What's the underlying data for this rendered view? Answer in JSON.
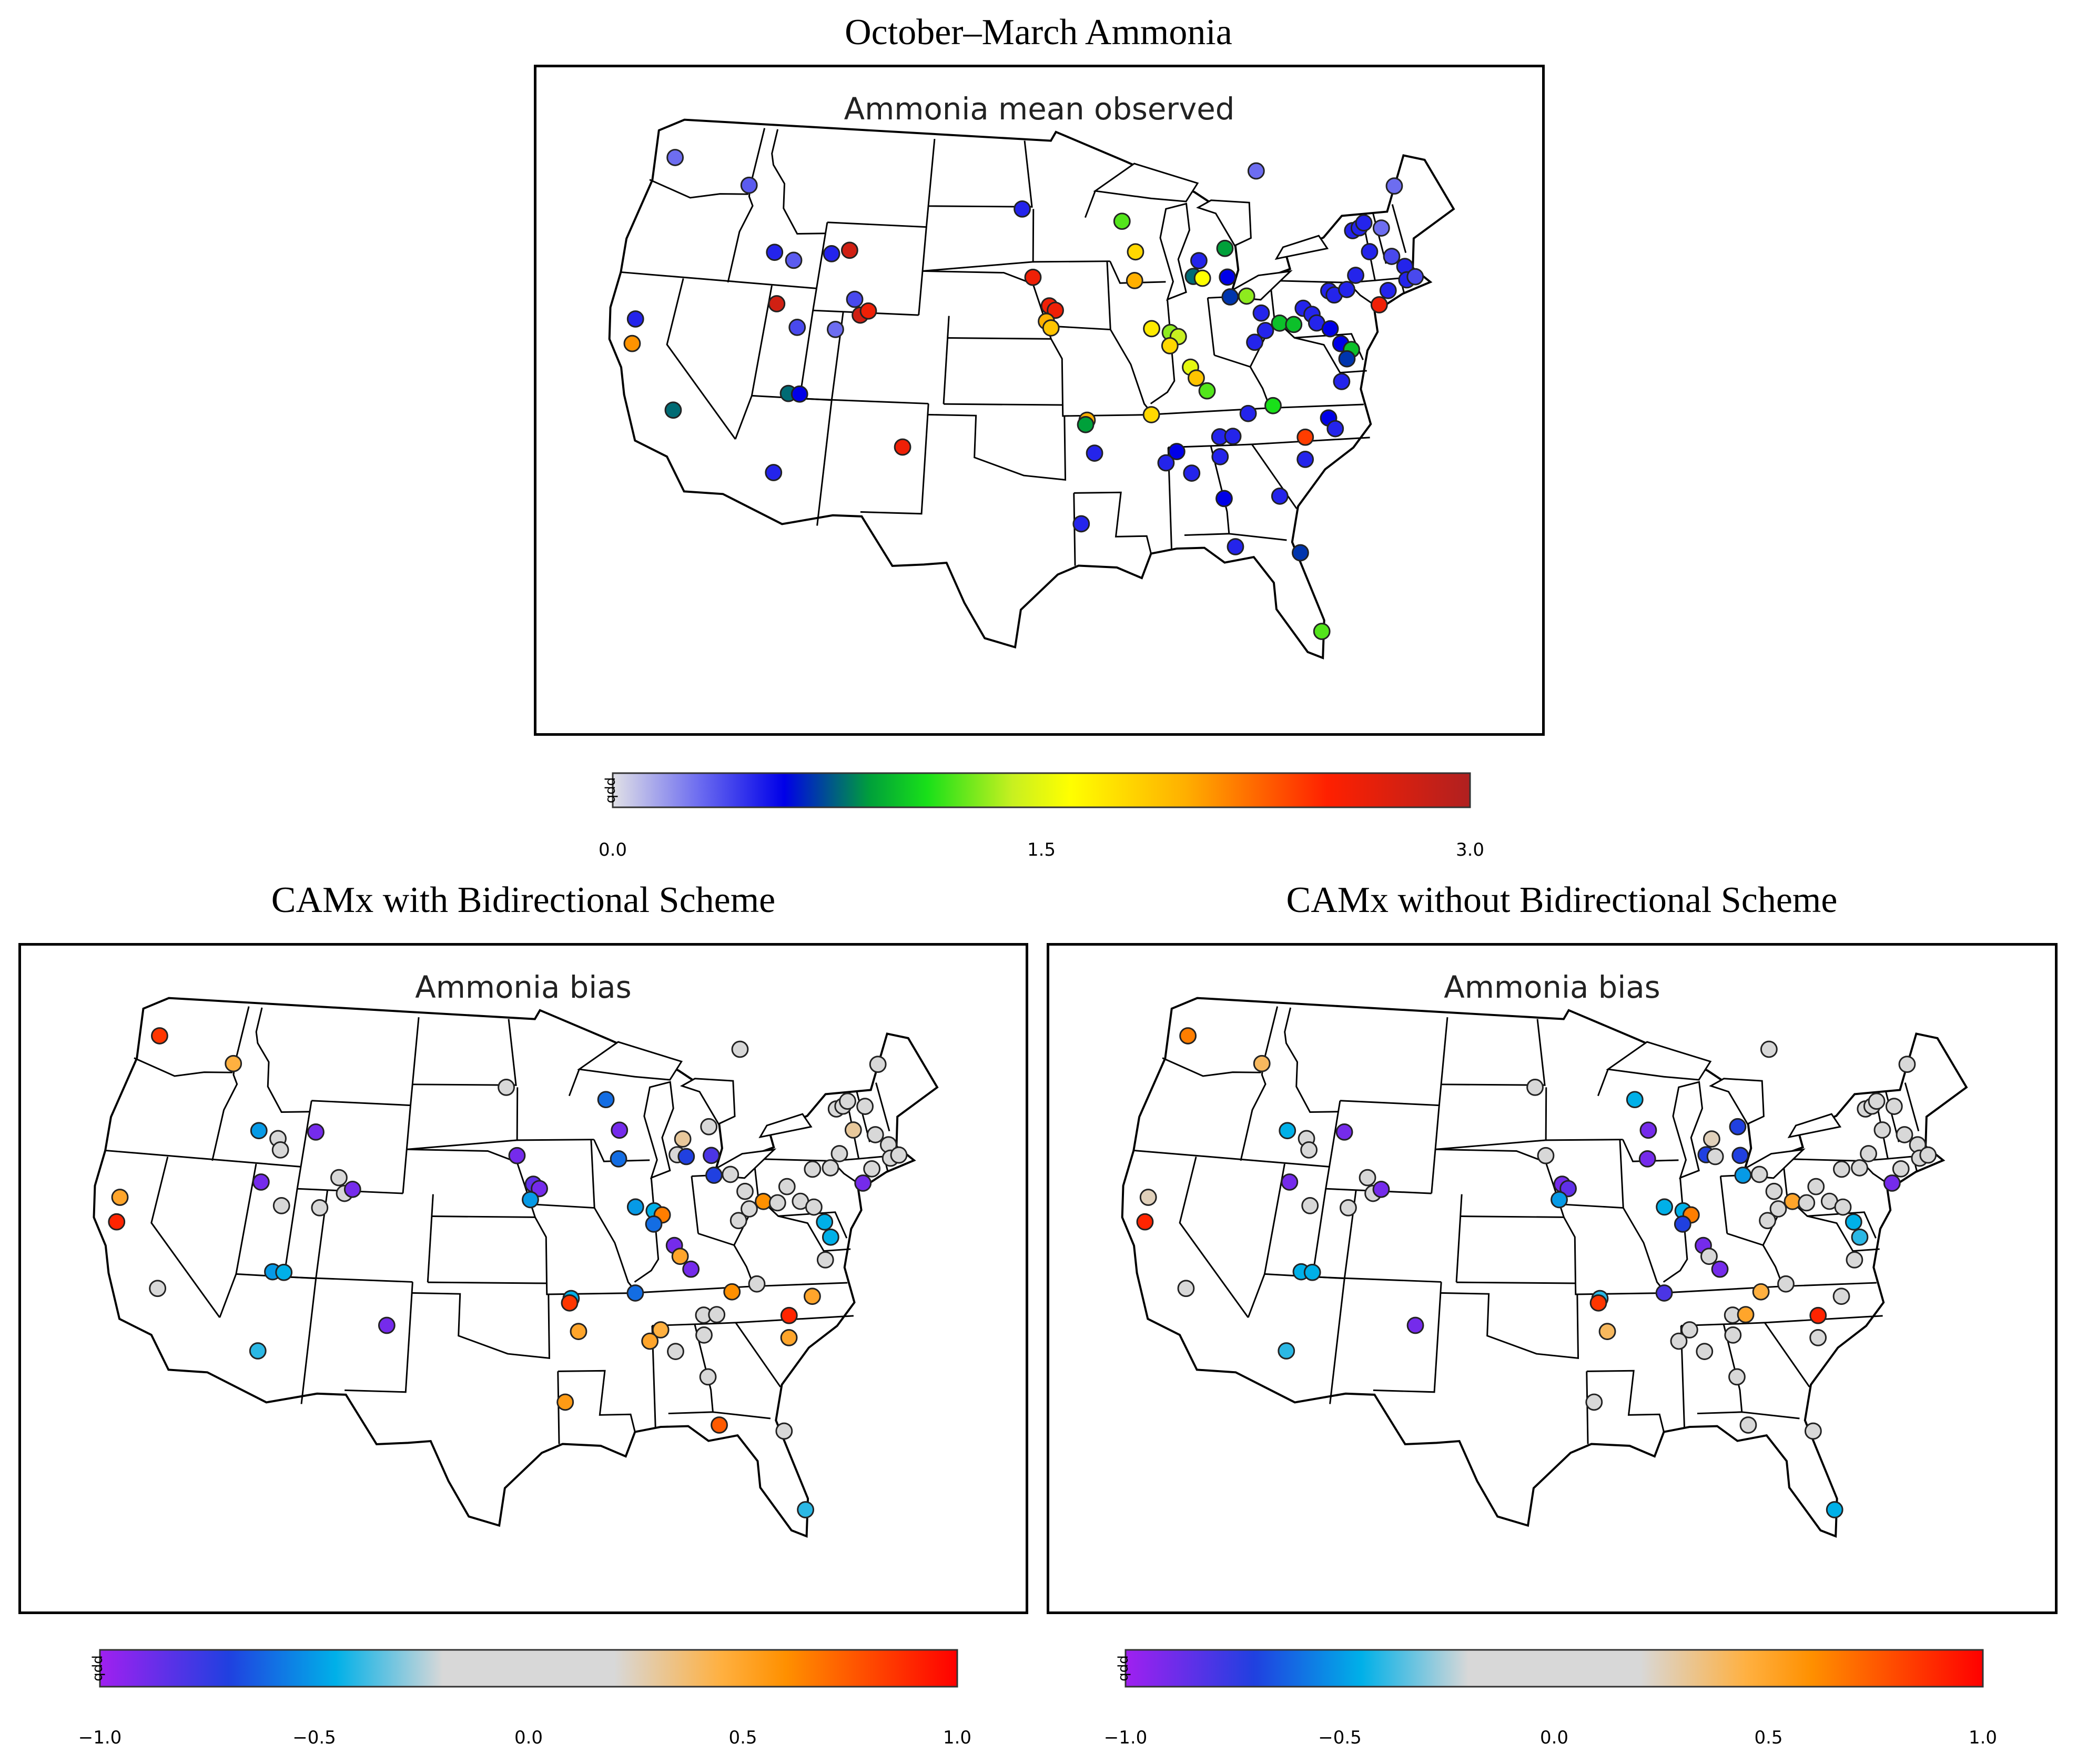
{
  "figure": {
    "title_top": "October–March Ammonia",
    "title_left": "CAMx with Bidirectional Scheme",
    "title_right": "CAMx without Bidirectional Scheme"
  },
  "maps": {
    "observed": {
      "inner_title": "Ammonia mean observed",
      "legend": {
        "unit": "ppb",
        "ticks": [
          "0.0",
          "1.5",
          "3.0"
        ],
        "range": [
          0,
          3
        ],
        "stops": [
          {
            "v": 0.0,
            "color": "#e0e0e6"
          },
          {
            "v": 0.3,
            "color": "#6d6df0"
          },
          {
            "v": 0.6,
            "color": "#0000e8"
          },
          {
            "v": 0.9,
            "color": "#00a03a"
          },
          {
            "v": 1.1,
            "color": "#19e019"
          },
          {
            "v": 1.4,
            "color": "#c8f020"
          },
          {
            "v": 1.6,
            "color": "#ffff00"
          },
          {
            "v": 2.0,
            "color": "#ffb000"
          },
          {
            "v": 2.5,
            "color": "#ff2000"
          },
          {
            "v": 3.0,
            "color": "#b02020"
          }
        ]
      }
    },
    "bias_with": {
      "inner_title": "Ammonia bias",
      "legend": {
        "unit": "ppb",
        "ticks": [
          "−1.0",
          "−0.5",
          "0.0",
          "0.5",
          "1.0"
        ],
        "range": [
          -1,
          1
        ],
        "stops": [
          {
            "v": -1.0,
            "color": "#a020f0"
          },
          {
            "v": -0.7,
            "color": "#2040e0"
          },
          {
            "v": -0.45,
            "color": "#00b0e8"
          },
          {
            "v": -0.2,
            "color": "#d8d8d8"
          },
          {
            "v": 0.2,
            "color": "#d8d8d8"
          },
          {
            "v": 0.45,
            "color": "#ffb040"
          },
          {
            "v": 0.6,
            "color": "#ff9000"
          },
          {
            "v": 1.0,
            "color": "#ff0000"
          }
        ]
      }
    },
    "bias_without": {
      "inner_title": "Ammonia bias",
      "legend": {
        "unit": "ppb",
        "ticks": [
          "−1.0",
          "−0.5",
          "0.0",
          "0.5",
          "1.0"
        ],
        "range": [
          -1,
          1
        ]
      }
    }
  },
  "sites": {
    "observed": [
      [
        -122.9,
        47.3,
        0.3
      ],
      [
        -117.1,
        46.4,
        0.35
      ],
      [
        -114.3,
        43.5,
        0.5
      ],
      [
        -112.9,
        43.2,
        0.35
      ],
      [
        -110.4,
        43.6,
        0.5
      ],
      [
        -109.2,
        43.8,
        2.8
      ],
      [
        -113.5,
        41.2,
        2.8
      ],
      [
        -122.4,
        40.0,
        0.5
      ],
      [
        -122.2,
        38.9,
        2.1
      ],
      [
        -118.7,
        36.1,
        0.8
      ],
      [
        -111.9,
        40.2,
        0.4
      ],
      [
        -108.4,
        41.6,
        0.4
      ],
      [
        -107.9,
        40.9,
        2.8
      ],
      [
        -107.4,
        41.1,
        2.6
      ],
      [
        -109.4,
        40.2,
        0.3
      ],
      [
        -111.8,
        37.2,
        0.8
      ],
      [
        -111.1,
        37.2,
        0.6
      ],
      [
        -112.0,
        33.6,
        0.5
      ],
      [
        -104.4,
        35.0,
        2.6
      ],
      [
        -97.3,
        45.9,
        0.5
      ],
      [
        -96.5,
        42.8,
        2.6
      ],
      [
        -95.4,
        41.5,
        2.6
      ],
      [
        -95.0,
        41.3,
        2.6
      ],
      [
        -95.6,
        40.8,
        2.0
      ],
      [
        -95.3,
        40.5,
        1.9
      ],
      [
        -93.1,
        36.3,
        2.0
      ],
      [
        -93.2,
        36.1,
        0.9
      ],
      [
        -92.7,
        34.8,
        0.5
      ],
      [
        -93.6,
        31.6,
        0.5
      ],
      [
        -90.2,
        45.3,
        1.2
      ],
      [
        -89.4,
        43.9,
        1.8
      ],
      [
        -89.6,
        42.6,
        2.0
      ],
      [
        -88.7,
        40.4,
        1.7
      ],
      [
        -87.5,
        40.2,
        1.3
      ],
      [
        -87.0,
        40.0,
        1.4
      ],
      [
        -87.6,
        39.6,
        1.8
      ],
      [
        -86.4,
        38.6,
        1.5
      ],
      [
        -86.1,
        38.1,
        1.9
      ],
      [
        -85.5,
        37.5,
        1.2
      ],
      [
        -89.1,
        36.5,
        1.8
      ],
      [
        -87.7,
        34.8,
        0.6
      ],
      [
        -88.4,
        34.3,
        0.5
      ],
      [
        -86.9,
        33.8,
        0.5
      ],
      [
        -85.1,
        34.5,
        0.5
      ],
      [
        -85.1,
        32.6,
        0.6
      ],
      [
        -84.7,
        30.4,
        0.5
      ],
      [
        -85.0,
        35.4,
        0.5
      ],
      [
        -84.2,
        35.4,
        0.5
      ],
      [
        -83.1,
        36.4,
        0.5
      ],
      [
        -81.5,
        36.7,
        1.1
      ],
      [
        -79.8,
        35.2,
        2.4
      ],
      [
        -78.2,
        36.0,
        0.6
      ],
      [
        -77.9,
        35.5,
        0.5
      ],
      [
        -80.0,
        34.2,
        0.5
      ],
      [
        -81.8,
        32.6,
        0.5
      ],
      [
        -81.0,
        30.0,
        0.7
      ],
      [
        -80.3,
        26.4,
        1.2
      ],
      [
        -85.6,
        42.7,
        0.8
      ],
      [
        -85.1,
        43.4,
        0.5
      ],
      [
        -85.0,
        42.6,
        1.6
      ],
      [
        -83.3,
        42.6,
        0.6
      ],
      [
        -83.3,
        41.7,
        0.7
      ],
      [
        -82.2,
        41.7,
        1.3
      ],
      [
        -81.4,
        40.9,
        0.5
      ],
      [
        -81.3,
        40.1,
        0.5
      ],
      [
        -82.1,
        39.6,
        0.5
      ],
      [
        -80.3,
        40.4,
        1.0
      ],
      [
        -79.4,
        40.3,
        1.0
      ],
      [
        -78.6,
        41.0,
        0.5
      ],
      [
        -78.1,
        40.7,
        0.5
      ],
      [
        -77.9,
        40.3,
        0.5
      ],
      [
        -77.1,
        40.0,
        0.6
      ],
      [
        -76.6,
        39.3,
        0.6
      ],
      [
        -76.0,
        39.0,
        1.0
      ],
      [
        -76.4,
        38.6,
        0.7
      ],
      [
        -77.0,
        37.6,
        0.5
      ],
      [
        -76.7,
        41.7,
        0.5
      ],
      [
        -76.4,
        41.5,
        0.5
      ],
      [
        -75.5,
        41.7,
        0.5
      ],
      [
        -74.7,
        42.3,
        0.5
      ],
      [
        -74.2,
        44.3,
        0.5
      ],
      [
        -73.7,
        44.4,
        0.5
      ],
      [
        -73.3,
        44.6,
        0.5
      ],
      [
        -73.4,
        43.3,
        0.5
      ],
      [
        -72.2,
        44.3,
        0.3
      ],
      [
        -72.0,
        43.0,
        0.4
      ],
      [
        -71.3,
        42.5,
        0.5
      ],
      [
        -72.8,
        41.5,
        0.5
      ],
      [
        -73.6,
        40.9,
        2.6
      ],
      [
        -71.4,
        41.9,
        0.5
      ],
      [
        -70.8,
        42.0,
        0.4
      ],
      [
        -70.5,
        46.1,
        0.3
      ],
      [
        -80.1,
        47.3,
        0.3
      ],
      [
        -83.2,
        43.9,
        0.9
      ]
    ],
    "bias_with": [
      [
        -122.9,
        47.3,
        0.85
      ],
      [
        -117.1,
        46.4,
        0.45
      ],
      [
        -114.3,
        43.5,
        -0.5
      ],
      [
        -112.9,
        43.2,
        0.0
      ],
      [
        -110.4,
        43.6,
        -0.9
      ],
      [
        -112.6,
        42.7,
        0.0
      ],
      [
        -113.5,
        41.2,
        -0.9
      ],
      [
        -122.4,
        40.0,
        0.5
      ],
      [
        -122.2,
        38.9,
        0.9
      ],
      [
        -118.7,
        36.1,
        0.1
      ],
      [
        -111.9,
        40.2,
        0.05
      ],
      [
        -108.4,
        41.6,
        0.05
      ],
      [
        -107.9,
        40.9,
        0.05
      ],
      [
        -107.4,
        41.1,
        -0.9
      ],
      [
        -109.4,
        40.2,
        0.05
      ],
      [
        -111.8,
        37.2,
        -0.5
      ],
      [
        -111.1,
        37.2,
        -0.45
      ],
      [
        -112.0,
        33.6,
        -0.4
      ],
      [
        -104.4,
        35.0,
        -0.9
      ],
      [
        -97.3,
        45.9,
        0.05
      ],
      [
        -96.5,
        42.8,
        -0.9
      ],
      [
        -95.4,
        41.5,
        -0.85
      ],
      [
        -95.0,
        41.3,
        -0.9
      ],
      [
        -95.6,
        40.8,
        -0.5
      ],
      [
        -93.1,
        36.3,
        -0.45
      ],
      [
        -93.2,
        36.1,
        0.85
      ],
      [
        -92.7,
        34.8,
        0.5
      ],
      [
        -93.6,
        31.6,
        0.55
      ],
      [
        -90.2,
        45.3,
        -0.6
      ],
      [
        -89.4,
        43.9,
        -0.9
      ],
      [
        -89.6,
        42.6,
        -0.6
      ],
      [
        -88.7,
        40.4,
        -0.5
      ],
      [
        -87.5,
        40.2,
        -0.45
      ],
      [
        -87.0,
        40.0,
        0.65
      ],
      [
        -87.6,
        39.6,
        -0.6
      ],
      [
        -86.4,
        38.6,
        -0.9
      ],
      [
        -86.1,
        38.1,
        0.5
      ],
      [
        -85.5,
        37.5,
        -0.9
      ],
      [
        -89.1,
        36.5,
        -0.6
      ],
      [
        -87.7,
        34.8,
        0.45
      ],
      [
        -88.4,
        34.3,
        0.5
      ],
      [
        -86.9,
        33.8,
        0.05
      ],
      [
        -85.1,
        34.5,
        0.1
      ],
      [
        -85.1,
        32.6,
        0.05
      ],
      [
        -84.7,
        30.4,
        0.75
      ],
      [
        -85.0,
        35.4,
        0.05
      ],
      [
        -84.2,
        35.4,
        0.05
      ],
      [
        -83.1,
        36.4,
        0.6
      ],
      [
        -81.5,
        36.7,
        0.05
      ],
      [
        -79.8,
        35.2,
        0.9
      ],
      [
        -78.2,
        36.0,
        0.5
      ],
      [
        -80.0,
        34.2,
        0.5
      ],
      [
        -81.0,
        30.0,
        0.05
      ],
      [
        -80.3,
        26.4,
        -0.4
      ],
      [
        -85.6,
        42.7,
        0.05
      ],
      [
        -85.1,
        43.4,
        0.3
      ],
      [
        -85.0,
        42.6,
        -0.7
      ],
      [
        -83.3,
        42.6,
        -0.8
      ],
      [
        -83.3,
        41.7,
        -0.7
      ],
      [
        -82.2,
        41.7,
        0.05
      ],
      [
        -81.4,
        40.9,
        0.05
      ],
      [
        -81.3,
        40.1,
        0.05
      ],
      [
        -82.1,
        39.6,
        0.05
      ],
      [
        -80.3,
        40.4,
        0.6
      ],
      [
        -79.4,
        40.3,
        0.05
      ],
      [
        -78.6,
        41.0,
        0.05
      ],
      [
        -77.9,
        40.3,
        0.05
      ],
      [
        -77.1,
        40.0,
        0.05
      ],
      [
        -76.6,
        39.3,
        -0.45
      ],
      [
        -76.4,
        38.6,
        -0.45
      ],
      [
        -77.0,
        37.6,
        0.05
      ],
      [
        -76.7,
        41.7,
        0.05
      ],
      [
        -75.5,
        41.7,
        0.05
      ],
      [
        -74.7,
        42.3,
        0.05
      ],
      [
        -74.2,
        44.3,
        0.05
      ],
      [
        -73.7,
        44.4,
        0.05
      ],
      [
        -73.3,
        44.6,
        0.05
      ],
      [
        -73.4,
        43.3,
        0.3
      ],
      [
        -72.2,
        44.3,
        0.05
      ],
      [
        -72.0,
        43.0,
        0.05
      ],
      [
        -71.3,
        42.5,
        0.1
      ],
      [
        -72.8,
        41.5,
        0.05
      ],
      [
        -73.6,
        40.9,
        -0.9
      ],
      [
        -71.4,
        41.9,
        0.05
      ],
      [
        -70.8,
        42.0,
        0.1
      ],
      [
        -70.5,
        46.1,
        0.05
      ],
      [
        -80.1,
        47.3,
        0.05
      ],
      [
        -83.2,
        43.9,
        0.05
      ]
    ],
    "bias_without": [
      [
        -122.9,
        47.3,
        0.65
      ],
      [
        -117.1,
        46.4,
        0.4
      ],
      [
        -114.3,
        43.5,
        -0.45
      ],
      [
        -112.9,
        43.2,
        0.05
      ],
      [
        -110.4,
        43.6,
        -0.9
      ],
      [
        -112.6,
        42.7,
        0.05
      ],
      [
        -113.5,
        41.2,
        -0.9
      ],
      [
        -122.4,
        40.0,
        0.25
      ],
      [
        -122.2,
        38.9,
        0.9
      ],
      [
        -118.7,
        36.1,
        0.15
      ],
      [
        -111.9,
        40.2,
        0.05
      ],
      [
        -108.4,
        41.6,
        0.05
      ],
      [
        -107.9,
        40.9,
        0.05
      ],
      [
        -107.4,
        41.1,
        -0.9
      ],
      [
        -109.4,
        40.2,
        0.05
      ],
      [
        -111.8,
        37.2,
        -0.45
      ],
      [
        -111.1,
        37.2,
        -0.45
      ],
      [
        -112.0,
        33.6,
        -0.4
      ],
      [
        -104.4,
        35.0,
        -0.9
      ],
      [
        -97.3,
        45.9,
        0.05
      ],
      [
        -96.5,
        42.8,
        0.05
      ],
      [
        -95.4,
        41.5,
        -0.9
      ],
      [
        -95.0,
        41.3,
        -0.85
      ],
      [
        -95.6,
        40.8,
        -0.5
      ],
      [
        -93.1,
        36.3,
        -0.4
      ],
      [
        -93.2,
        36.1,
        0.85
      ],
      [
        -92.7,
        34.8,
        0.4
      ],
      [
        -93.6,
        31.6,
        0.15
      ],
      [
        -90.2,
        45.3,
        -0.45
      ],
      [
        -89.4,
        43.9,
        -0.9
      ],
      [
        -89.6,
        42.6,
        -0.9
      ],
      [
        -88.7,
        40.4,
        -0.45
      ],
      [
        -87.5,
        40.2,
        -0.45
      ],
      [
        -87.0,
        40.0,
        0.65
      ],
      [
        -87.6,
        39.6,
        -0.7
      ],
      [
        -86.4,
        38.6,
        -0.9
      ],
      [
        -86.1,
        38.1,
        0.05
      ],
      [
        -85.5,
        37.5,
        -0.9
      ],
      [
        -89.1,
        36.5,
        -0.8
      ],
      [
        -87.7,
        34.8,
        0.1
      ],
      [
        -88.4,
        34.3,
        0.05
      ],
      [
        -86.9,
        33.8,
        0.05
      ],
      [
        -85.1,
        34.5,
        0.05
      ],
      [
        -85.1,
        32.6,
        0.05
      ],
      [
        -84.7,
        30.4,
        0.2
      ],
      [
        -85.0,
        35.4,
        0.05
      ],
      [
        -84.2,
        35.4,
        0.5
      ],
      [
        -83.1,
        36.4,
        0.45
      ],
      [
        -81.5,
        36.7,
        0.05
      ],
      [
        -79.8,
        35.2,
        0.9
      ],
      [
        -78.2,
        36.0,
        0.05
      ],
      [
        -80.0,
        34.2,
        0.05
      ],
      [
        -81.0,
        30.0,
        0.05
      ],
      [
        -80.3,
        26.4,
        -0.45
      ],
      [
        -85.6,
        42.7,
        -0.7
      ],
      [
        -85.1,
        43.4,
        0.25
      ],
      [
        -85.0,
        42.6,
        0.0
      ],
      [
        -83.3,
        42.6,
        -0.7
      ],
      [
        -83.3,
        41.7,
        -0.5
      ],
      [
        -82.2,
        41.7,
        0.05
      ],
      [
        -81.4,
        40.9,
        0.05
      ],
      [
        -81.3,
        40.1,
        0.05
      ],
      [
        -82.1,
        39.6,
        0.05
      ],
      [
        -80.3,
        40.4,
        0.5
      ],
      [
        -79.4,
        40.3,
        0.05
      ],
      [
        -78.6,
        41.0,
        0.05
      ],
      [
        -77.9,
        40.3,
        0.05
      ],
      [
        -77.1,
        40.0,
        0.05
      ],
      [
        -76.6,
        39.3,
        -0.45
      ],
      [
        -76.4,
        38.6,
        -0.4
      ],
      [
        -77.0,
        37.6,
        0.05
      ],
      [
        -76.7,
        41.7,
        0.05
      ],
      [
        -75.5,
        41.7,
        0.05
      ],
      [
        -74.7,
        42.3,
        0.05
      ],
      [
        -74.2,
        44.3,
        0.05
      ],
      [
        -73.7,
        44.4,
        0.05
      ],
      [
        -73.3,
        44.6,
        0.05
      ],
      [
        -73.4,
        43.3,
        0.05
      ],
      [
        -72.2,
        44.3,
        0.05
      ],
      [
        -72.0,
        43.0,
        0.05
      ],
      [
        -71.3,
        42.5,
        0.05
      ],
      [
        -72.8,
        41.5,
        0.05
      ],
      [
        -73.6,
        40.9,
        -0.9
      ],
      [
        -71.4,
        41.9,
        0.05
      ],
      [
        -70.8,
        42.0,
        0.05
      ],
      [
        -70.5,
        46.1,
        0.05
      ],
      [
        -80.1,
        47.3,
        0.05
      ],
      [
        -83.2,
        43.9,
        -0.7
      ]
    ]
  }
}
